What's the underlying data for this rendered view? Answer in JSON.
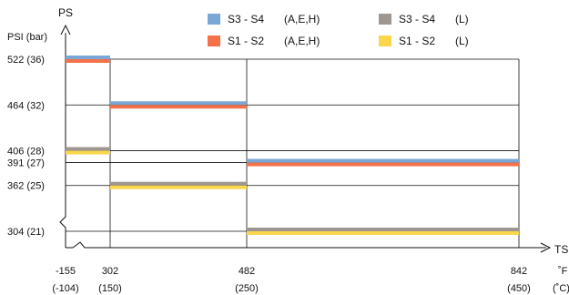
{
  "chart_data": {
    "type": "line",
    "y_axis_title": "PS",
    "y_unit_label": "PSI (bar)",
    "x_axis_title": "TS",
    "x_unit_labels": [
      "˚F",
      "(˚C)"
    ],
    "y_ticks": [
      {
        "value": 522,
        "label": "522 (36)"
      },
      {
        "value": 464,
        "label": "464 (32)"
      },
      {
        "value": 406,
        "label": "406 (28)"
      },
      {
        "value": 391,
        "label": "391 (27)"
      },
      {
        "value": 362,
        "label": "362 (25)"
      },
      {
        "value": 304,
        "label": "304 (21)"
      }
    ],
    "x_ticks": [
      {
        "value": -155,
        "label": "-155",
        "sub": "(-104)"
      },
      {
        "value": 302,
        "label": "302",
        "sub": "(150)"
      },
      {
        "value": 482,
        "label": "482",
        "sub": "(250)"
      },
      {
        "value": 842,
        "label": "842",
        "sub": "(450)"
      }
    ],
    "series": [
      {
        "name": "S3 - S4",
        "code": "(A,E,H)",
        "color": "#7aa7d6",
        "steps": [
          {
            "x": [
              -155,
              302
            ],
            "y": 522
          },
          {
            "x": [
              302,
              482
            ],
            "y": 464
          },
          {
            "x": [
              482,
              842
            ],
            "y": 391
          }
        ]
      },
      {
        "name": "S1 - S2",
        "code": "(A,E,H)",
        "color": "#f4714a",
        "steps": [
          {
            "x": [
              -155,
              302
            ],
            "y": 522
          },
          {
            "x": [
              302,
              482
            ],
            "y": 464
          },
          {
            "x": [
              482,
              842
            ],
            "y": 391
          }
        ]
      },
      {
        "name": "S3 - S4",
        "code": "(L)",
        "color": "#9e9690",
        "steps": [
          {
            "x": [
              -155,
              302
            ],
            "y": 406
          },
          {
            "x": [
              302,
              482
            ],
            "y": 362
          },
          {
            "x": [
              482,
              842
            ],
            "y": 304
          }
        ]
      },
      {
        "name": "S1 - S2",
        "code": "(L)",
        "color": "#f9d64c",
        "steps": [
          {
            "x": [
              -155,
              302
            ],
            "y": 406
          },
          {
            "x": [
              302,
              482
            ],
            "y": 362
          },
          {
            "x": [
              482,
              842
            ],
            "y": 304
          }
        ]
      }
    ]
  }
}
